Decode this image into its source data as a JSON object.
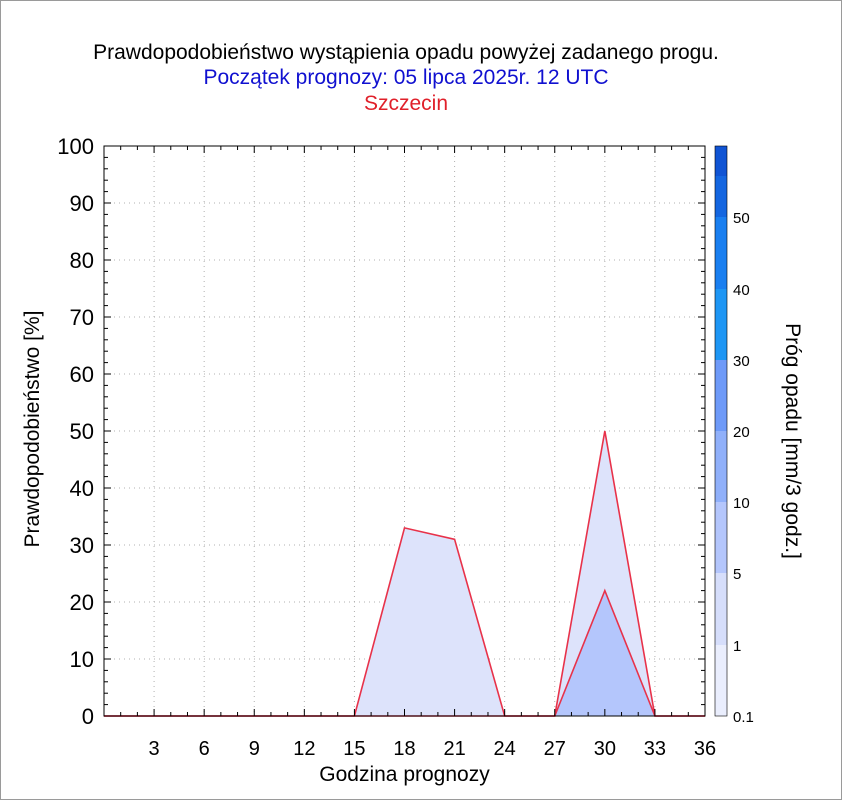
{
  "header": {
    "title": "Prawdopodobieństwo wystąpienia opadu powyżej zadanego progu.",
    "subtitle": "Początek prognozy: 05 lipca 2025r. 12 UTC",
    "location": "Szczecin"
  },
  "chart_data": {
    "type": "area",
    "xlabel": "Godzina prognozy",
    "ylabel": "Prawdopodobieństwo [%]",
    "xlim": [
      0,
      36
    ],
    "ylim": [
      0,
      100
    ],
    "x_ticks": [
      3,
      6,
      9,
      12,
      15,
      18,
      21,
      24,
      27,
      30,
      33,
      36
    ],
    "y_ticks": [
      0,
      10,
      20,
      30,
      40,
      50,
      60,
      70,
      80,
      90,
      100
    ],
    "grid": true,
    "x": [
      0,
      3,
      6,
      9,
      12,
      15,
      18,
      21,
      24,
      27,
      30,
      33,
      36
    ],
    "series": [
      {
        "threshold": 0.1,
        "values": [
          0,
          0,
          0,
          0,
          0,
          0,
          33,
          31,
          0,
          0,
          50,
          0,
          0
        ]
      },
      {
        "threshold": 1,
        "values": [
          0,
          0,
          0,
          0,
          0,
          0,
          0,
          0,
          0,
          0,
          22,
          0,
          0
        ]
      }
    ],
    "series_color": "#dde3fb",
    "series2_color": "#b4c6fc",
    "line_color": "#e8324a",
    "colorbar": {
      "label": "Próg opadu [mm/3 godz.]",
      "ticks": [
        "0.1",
        "1",
        "5",
        "10",
        "20",
        "30",
        "40",
        "50"
      ],
      "colors": [
        "#eaeefd",
        "#d6defb",
        "#b4c6fc",
        "#90b0fa",
        "#6e9af8",
        "#1e96f4",
        "#1a7ff0",
        "#1466e0",
        "#1054d4",
        "#0a3ec0"
      ]
    }
  }
}
